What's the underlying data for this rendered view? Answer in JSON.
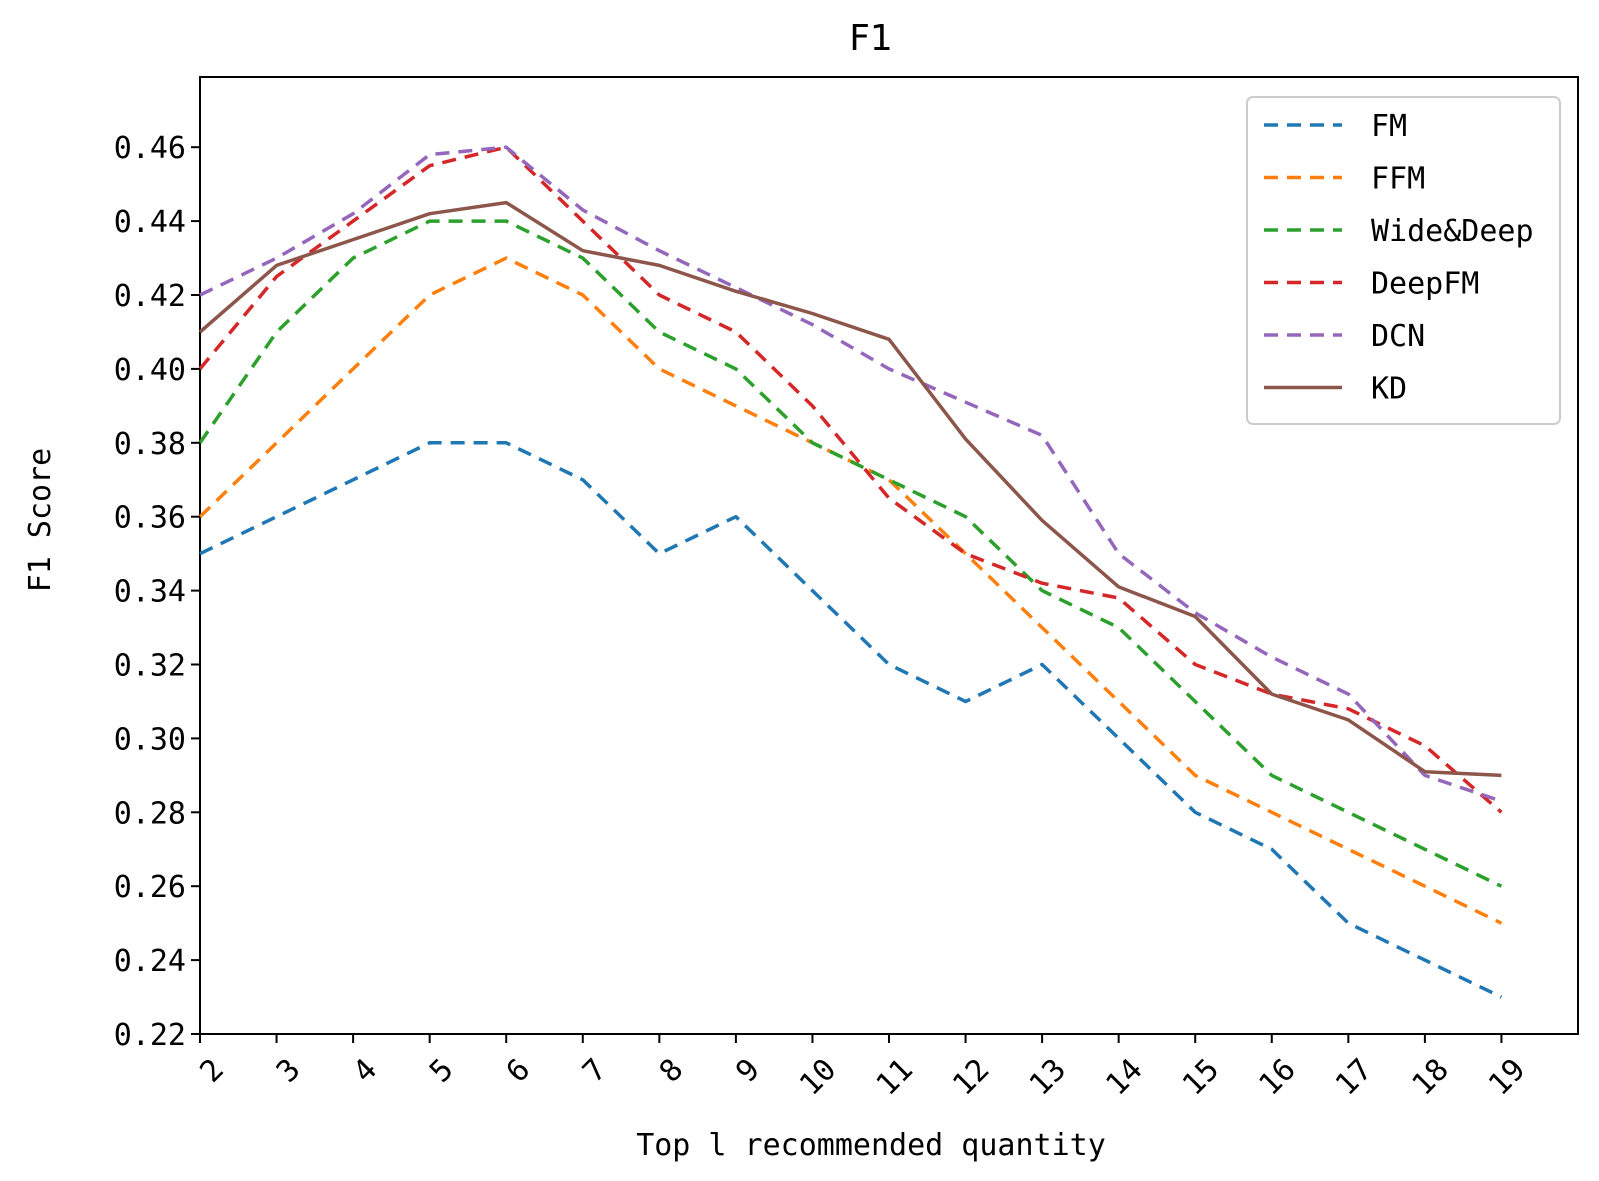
{
  "chart_data": {
    "type": "line",
    "title": "F1",
    "xlabel": "Top l recommended quantity",
    "ylabel": "F1 Score",
    "x": [
      2,
      3,
      4,
      5,
      6,
      7,
      8,
      9,
      10,
      11,
      12,
      13,
      14,
      15,
      16,
      17,
      18,
      19
    ],
    "x_tick_labels": [
      "2",
      "3",
      "4",
      "5",
      "6",
      "7",
      "8",
      "9",
      "10",
      "11",
      "12",
      "13",
      "14",
      "15",
      "16",
      "17",
      "18",
      "19"
    ],
    "y_tick_labels": [
      "0.22",
      "0.24",
      "0.26",
      "0.28",
      "0.30",
      "0.32",
      "0.34",
      "0.36",
      "0.38",
      "0.40",
      "0.42",
      "0.44",
      "0.46"
    ],
    "y_ticks": [
      0.22,
      0.24,
      0.26,
      0.28,
      0.3,
      0.32,
      0.34,
      0.36,
      0.38,
      0.4,
      0.42,
      0.44,
      0.46
    ],
    "xlim": [
      2,
      20
    ],
    "ylim": [
      0.22,
      0.479
    ],
    "grid": false,
    "legend_position": "top-right",
    "series": [
      {
        "name": "FM",
        "color": "#1f77b4",
        "dashed": true,
        "values": [
          0.35,
          0.36,
          0.37,
          0.38,
          0.38,
          0.37,
          0.35,
          0.36,
          0.34,
          0.32,
          0.31,
          0.32,
          0.3,
          0.28,
          0.27,
          0.25,
          0.24,
          0.23
        ]
      },
      {
        "name": "FFM",
        "color": "#ff7f0e",
        "dashed": true,
        "values": [
          0.36,
          0.38,
          0.4,
          0.42,
          0.43,
          0.42,
          0.4,
          0.39,
          0.38,
          0.37,
          0.35,
          0.33,
          0.31,
          0.29,
          0.28,
          0.27,
          0.26,
          0.25
        ]
      },
      {
        "name": "Wide&Deep",
        "color": "#2ca02c",
        "dashed": true,
        "values": [
          0.38,
          0.41,
          0.43,
          0.44,
          0.44,
          0.43,
          0.41,
          0.4,
          0.38,
          0.37,
          0.36,
          0.34,
          0.33,
          0.31,
          0.29,
          0.28,
          0.27,
          0.26
        ]
      },
      {
        "name": "DeepFM",
        "color": "#d62728",
        "dashed": true,
        "values": [
          0.4,
          0.425,
          0.44,
          0.455,
          0.46,
          0.44,
          0.42,
          0.41,
          0.39,
          0.365,
          0.35,
          0.342,
          0.338,
          0.32,
          0.312,
          0.308,
          0.298,
          0.28
        ]
      },
      {
        "name": "DCN",
        "color": "#9467bd",
        "dashed": true,
        "values": [
          0.42,
          0.43,
          0.442,
          0.458,
          0.46,
          0.443,
          0.432,
          0.422,
          0.412,
          0.4,
          0.391,
          0.382,
          0.35,
          0.334,
          0.322,
          0.312,
          0.29,
          0.283
        ]
      },
      {
        "name": "KD",
        "color": "#8c564b",
        "dashed": false,
        "values": [
          0.41,
          0.428,
          0.435,
          0.442,
          0.445,
          0.432,
          0.428,
          0.421,
          0.415,
          0.408,
          0.381,
          0.359,
          0.341,
          0.333,
          0.312,
          0.305,
          0.291,
          0.29
        ]
      }
    ]
  }
}
